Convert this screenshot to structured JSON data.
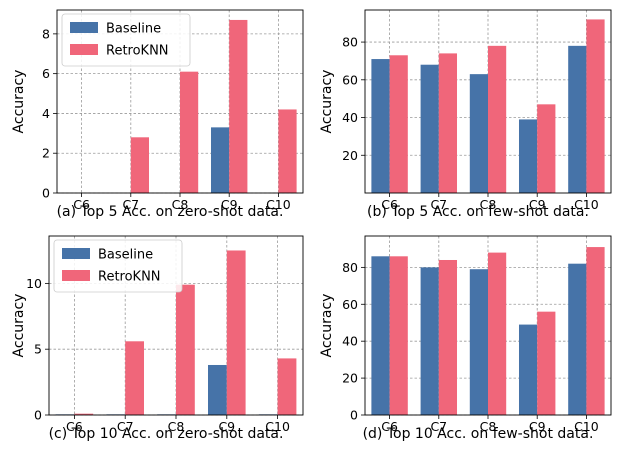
{
  "colors": {
    "baseline": "#4673a8",
    "retro": "#f0667a"
  },
  "chart_data": [
    {
      "type": "bar",
      "caption": "(a) Top 5 Acc. on zero-shot data.",
      "ylabel": "Accuracy",
      "categories": [
        "C6",
        "C7",
        "C8",
        "C9",
        "C10"
      ],
      "ylim": [
        0,
        9.2
      ],
      "yticks": [
        "0",
        "2",
        "4",
        "6",
        "8"
      ],
      "legend": "top-left",
      "series": [
        {
          "name": "Baseline",
          "values": [
            0,
            0,
            0,
            3.3,
            0
          ]
        },
        {
          "name": "RetroKNN",
          "values": [
            0,
            2.8,
            6.1,
            8.7,
            4.2
          ]
        }
      ]
    },
    {
      "type": "bar",
      "caption": "(b) Top 5 Acc. on few-shot data.",
      "ylabel": "Accuracy",
      "categories": [
        "C6",
        "C7",
        "C8",
        "C9",
        "C10"
      ],
      "ylim": [
        0,
        97
      ],
      "yticks": [
        "20",
        "40",
        "60",
        "80"
      ],
      "legend": "none",
      "series": [
        {
          "name": "Baseline",
          "values": [
            71,
            68,
            63,
            39,
            78
          ]
        },
        {
          "name": "RetroKNN",
          "values": [
            73,
            74,
            78,
            47,
            92
          ]
        }
      ]
    },
    {
      "type": "bar",
      "caption": "(c) Top 10 Acc. on zero-shot data.",
      "ylabel": "Accuracy",
      "categories": [
        "C6",
        "C7",
        "C8",
        "C9",
        "C10"
      ],
      "ylim": [
        0,
        13.6
      ],
      "yticks": [
        "0",
        "5",
        "10"
      ],
      "legend": "top-left",
      "series": [
        {
          "name": "Baseline",
          "values": [
            0.05,
            0.05,
            0.05,
            3.8,
            0.05
          ]
        },
        {
          "name": "RetroKNN",
          "values": [
            0.1,
            5.6,
            9.9,
            12.5,
            4.3
          ]
        }
      ]
    },
    {
      "type": "bar",
      "caption": "(d) Top 10 Acc. on few-shot data.",
      "ylabel": "Accuracy",
      "categories": [
        "C6",
        "C7",
        "C8",
        "C9",
        "C10"
      ],
      "ylim": [
        0,
        97
      ],
      "yticks": [
        "0",
        "20",
        "40",
        "60",
        "80"
      ],
      "legend": "none",
      "series": [
        {
          "name": "Baseline",
          "values": [
            86,
            80,
            79,
            49,
            82
          ]
        },
        {
          "name": "RetroKNN",
          "values": [
            86,
            84,
            88,
            56,
            91
          ]
        }
      ]
    }
  ]
}
